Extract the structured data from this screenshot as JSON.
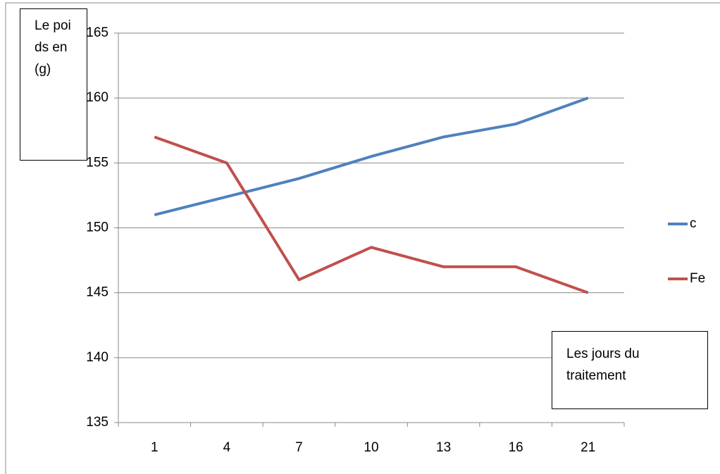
{
  "chart_data": {
    "type": "line",
    "y_label": "Le poids en (g)",
    "x_label": "Les jours du traitement",
    "categories": [
      "1",
      "4",
      "7",
      "10",
      "13",
      "16",
      "21"
    ],
    "series": [
      {
        "name": "c",
        "color": "#4f81bd",
        "values": [
          151,
          152.4,
          153.8,
          155.5,
          157,
          158,
          160
        ]
      },
      {
        "name": "Fe",
        "color": "#c0504d",
        "values": [
          157,
          155,
          146,
          148.5,
          147,
          147,
          145
        ]
      }
    ],
    "ylim": [
      135,
      165
    ],
    "yticks": [
      135,
      140,
      145,
      150,
      155,
      160,
      165
    ],
    "grid": true,
    "legend": "right"
  }
}
